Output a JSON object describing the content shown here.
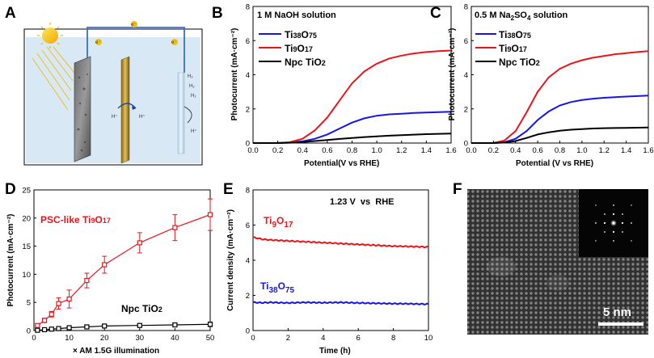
{
  "panels": {
    "a": "A",
    "b": "B",
    "c": "C",
    "d": "D",
    "e": "E",
    "f": "F"
  },
  "diagram": {
    "electron": "e⁻",
    "proton": "H⁺",
    "hydrogen": "H₂"
  },
  "micrograph": {
    "scale_bar": "5 nm"
  },
  "colors": {
    "red": "#e8161c",
    "blue": "#1616e6",
    "black": "#000000",
    "gray": "#777777"
  },
  "chart_data": [
    {
      "id": "b",
      "type": "line",
      "annotation": "1 M NaOH solution",
      "xlabel": "Potential(V vs RHE)",
      "ylabel": "Photocurrent (mA·cm⁻²)",
      "xlim": [
        0,
        1.6
      ],
      "ylim": [
        0,
        8
      ],
      "xticks": [
        "0.0",
        "0.2",
        "0.4",
        "0.6",
        "0.8",
        "1.0",
        "1.2",
        "1.4",
        "1.6"
      ],
      "yticks": [
        "0",
        "2",
        "4",
        "6",
        "8"
      ],
      "x": [
        0.0,
        0.2,
        0.3,
        0.4,
        0.5,
        0.6,
        0.7,
        0.8,
        0.9,
        1.0,
        1.1,
        1.2,
        1.3,
        1.4,
        1.5,
        1.6
      ],
      "series": [
        {
          "name": "Ti38O75",
          "label_main": "Ti",
          "sub1": "38",
          "mid": "O",
          "sub2": "75",
          "color": "#1616e6",
          "values": [
            0.0,
            0.0,
            0.03,
            0.1,
            0.25,
            0.5,
            0.85,
            1.2,
            1.45,
            1.6,
            1.68,
            1.72,
            1.76,
            1.79,
            1.81,
            1.83
          ]
        },
        {
          "name": "Ti9O17",
          "label_main": "Ti",
          "sub1": "9",
          "mid": "O",
          "sub2": "17",
          "color": "#e8161c",
          "values": [
            0.0,
            0.0,
            0.05,
            0.25,
            0.75,
            1.5,
            2.5,
            3.5,
            4.2,
            4.65,
            4.95,
            5.12,
            5.25,
            5.33,
            5.38,
            5.42
          ]
        },
        {
          "name": "Npc TiO2",
          "label_main": "Npc TiO",
          "sub1": "2",
          "mid": "",
          "sub2": "",
          "color": "#000000",
          "values": [
            0.0,
            0.0,
            0.02,
            0.06,
            0.12,
            0.18,
            0.24,
            0.3,
            0.35,
            0.39,
            0.43,
            0.46,
            0.49,
            0.52,
            0.54,
            0.56
          ]
        }
      ]
    },
    {
      "id": "c",
      "type": "line",
      "annotation_pre": "0.5 M Na",
      "annotation_sub1": "2",
      "annotation_mid": "SO",
      "annotation_sub2": "4",
      "annotation_post": " solution",
      "xlabel": "Potential (V vs RHE)",
      "ylabel": "Photocurrent (mA·cm⁻²)",
      "xlim": [
        0,
        1.6
      ],
      "ylim": [
        0,
        8
      ],
      "xticks": [
        "0.0",
        "0.2",
        "0.4",
        "0.6",
        "0.8",
        "1.0",
        "1.2",
        "1.4",
        "1.6"
      ],
      "yticks": [
        "0",
        "2",
        "4",
        "6",
        "8"
      ],
      "x": [
        0.0,
        0.2,
        0.3,
        0.4,
        0.5,
        0.6,
        0.7,
        0.8,
        0.9,
        1.0,
        1.1,
        1.2,
        1.3,
        1.4,
        1.5,
        1.6
      ],
      "series": [
        {
          "name": "Ti38O75",
          "label_main": "Ti",
          "sub1": "38",
          "mid": "O",
          "sub2": "75",
          "color": "#1616e6",
          "values": [
            0.0,
            0.0,
            0.05,
            0.25,
            0.7,
            1.35,
            1.85,
            2.2,
            2.4,
            2.52,
            2.6,
            2.65,
            2.69,
            2.72,
            2.75,
            2.78
          ]
        },
        {
          "name": "Ti9O17",
          "label_main": "Ti",
          "sub1": "9",
          "mid": "O",
          "sub2": "17",
          "color": "#e8161c",
          "values": [
            0.0,
            0.0,
            0.15,
            0.7,
            1.8,
            3.0,
            3.85,
            4.35,
            4.65,
            4.85,
            5.0,
            5.1,
            5.2,
            5.27,
            5.33,
            5.38
          ]
        },
        {
          "name": "Npc TiO2",
          "label_main": "Npc TiO",
          "sub1": "2",
          "mid": "",
          "sub2": "",
          "color": "#000000",
          "values": [
            0.0,
            0.0,
            0.03,
            0.12,
            0.3,
            0.5,
            0.63,
            0.72,
            0.78,
            0.82,
            0.85,
            0.87,
            0.88,
            0.89,
            0.9,
            0.91
          ]
        }
      ]
    },
    {
      "id": "d",
      "type": "line",
      "xlabel": "× AM 1.5G illumination",
      "ylabel": "Photocurrent (mA·cm⁻²)",
      "xlim": [
        0,
        50
      ],
      "ylim": [
        0,
        25
      ],
      "xticks": [
        "0",
        "10",
        "20",
        "30",
        "40",
        "50"
      ],
      "yticks": [
        "0",
        "5",
        "10",
        "15",
        "20",
        "25"
      ],
      "x": [
        1,
        3,
        5,
        7,
        10,
        15,
        20,
        30,
        40,
        50
      ],
      "series": [
        {
          "name": "PSC-like Ti9O17",
          "label_pre": "PSC-like Ti",
          "sub1": "9",
          "mid": "O",
          "sub2": "17",
          "color": "#e8161c",
          "values": [
            0.9,
            1.8,
            2.9,
            4.8,
            5.6,
            8.9,
            11.7,
            15.6,
            18.3,
            20.6
          ],
          "errors": [
            0.3,
            0.4,
            0.5,
            1.0,
            1.6,
            1.3,
            1.5,
            1.8,
            2.3,
            2.8
          ]
        },
        {
          "name": "Npc TiO2",
          "label_pre": "Npc TiO",
          "sub1": "2",
          "mid": "",
          "sub2": "",
          "color": "#000000",
          "values": [
            0.05,
            0.15,
            0.25,
            0.35,
            0.5,
            0.65,
            0.8,
            0.9,
            1.0,
            1.1
          ],
          "errors": [
            0.05,
            0.1,
            0.1,
            0.15,
            0.2,
            0.2,
            0.25,
            0.3,
            0.35,
            0.4
          ]
        }
      ]
    },
    {
      "id": "e",
      "type": "line",
      "annotation": "1.23 V  vs  RHE",
      "xlabel": "Time (h)",
      "ylabel": "Current density (mA·cm⁻²)",
      "xlim": [
        0,
        10
      ],
      "ylim": [
        0,
        8
      ],
      "xticks": [
        "0",
        "2",
        "4",
        "6",
        "8",
        "10"
      ],
      "yticks": [
        "0",
        "2",
        "4",
        "6",
        "8"
      ],
      "x": [
        0,
        0.5,
        1,
        2,
        3,
        4,
        5,
        6,
        7,
        8,
        9,
        10
      ],
      "series": [
        {
          "name": "Ti9O17",
          "label_main": "Ti",
          "sub1": "9",
          "mid": "O",
          "sub2": "17",
          "color": "#e8161c",
          "values": [
            5.3,
            5.2,
            5.15,
            5.1,
            5.05,
            5.0,
            4.95,
            4.9,
            4.85,
            4.8,
            4.78,
            4.75
          ]
        },
        {
          "name": "Ti38O75",
          "label_main": "Ti",
          "sub1": "38",
          "mid": "O",
          "sub2": "75",
          "color": "#1616e6",
          "values": [
            1.6,
            1.58,
            1.6,
            1.57,
            1.6,
            1.58,
            1.6,
            1.57,
            1.55,
            1.53,
            1.52,
            1.5
          ]
        }
      ]
    }
  ]
}
